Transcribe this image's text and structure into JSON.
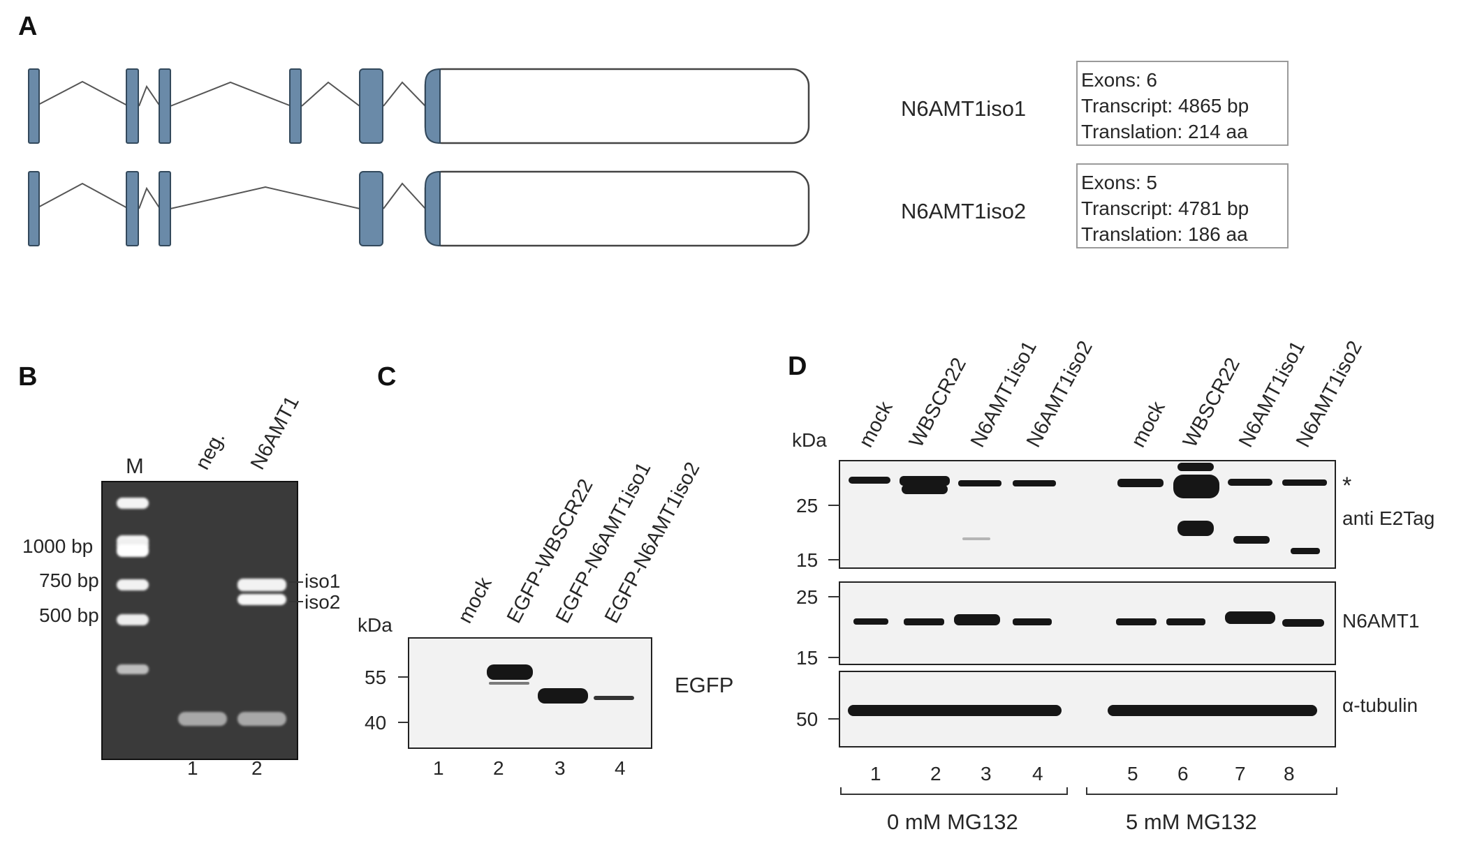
{
  "panelA": {
    "letter": "A",
    "isoforms": [
      {
        "name": "N6AMT1iso1",
        "info": [
          "Exons: 6",
          "Transcript: 4865 bp",
          "Translation: 214 aa"
        ]
      },
      {
        "name": "N6AMT1iso2",
        "info": [
          "Exons: 5",
          "Transcript: 4781 bp",
          "Translation: 186 aa"
        ]
      }
    ]
  },
  "panelB": {
    "letter": "B",
    "lane_headers": [
      "M",
      "neg.",
      "N6AMT1"
    ],
    "markers": [
      "1000 bp",
      "750 bp",
      "500 bp"
    ],
    "band_labels": [
      "iso1",
      "iso2"
    ],
    "lane_numbers": [
      "1",
      "2"
    ]
  },
  "panelC": {
    "letter": "C",
    "unit": "kDa",
    "lane_headers": [
      "mock",
      "EGFP-WBSCR22",
      "EGFP-N6AMT1iso1",
      "EGFP-N6AMT1iso2"
    ],
    "markers": [
      "55",
      "40"
    ],
    "blot_label": "EGFP",
    "lane_numbers": [
      "1",
      "2",
      "3",
      "4"
    ]
  },
  "panelD": {
    "letter": "D",
    "unit": "kDa",
    "lane_headers": [
      "mock",
      "WBSCR22",
      "N6AMT1iso1",
      "N6AMT1iso2",
      "mock",
      "WBSCR22",
      "N6AMT1iso1",
      "N6AMT1iso2"
    ],
    "blot1": {
      "markers": [
        "25",
        "15"
      ],
      "label": "anti E2Tag",
      "asterisk": "*"
    },
    "blot2": {
      "markers": [
        "25",
        "15"
      ],
      "label": "N6AMT1"
    },
    "blot3": {
      "markers": [
        "50"
      ],
      "label": "α-tubulin"
    },
    "lane_numbers": [
      "1",
      "2",
      "3",
      "4",
      "5",
      "6",
      "7",
      "8"
    ],
    "conditions": [
      "0 mM MG132",
      "5 mM MG132"
    ]
  }
}
